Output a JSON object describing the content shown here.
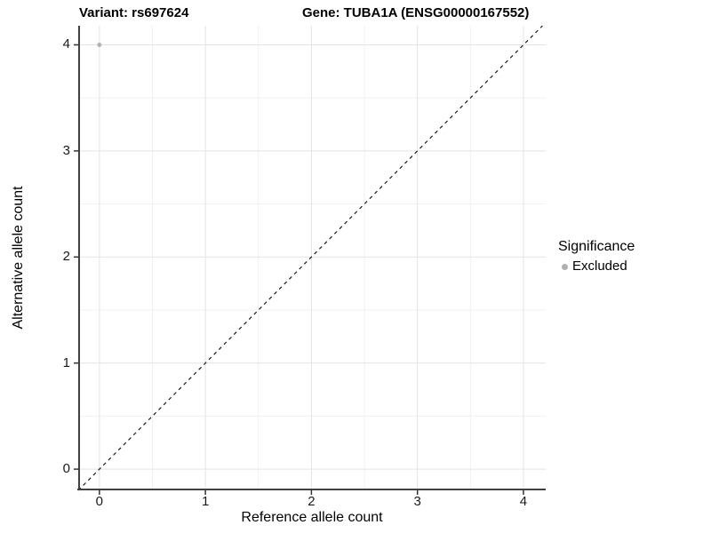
{
  "chart_data": {
    "type": "scatter",
    "title_left": "Variant: rs697624",
    "title_right": "Gene: TUBA1A (ENSG00000167552)",
    "xlabel": "Reference allele count",
    "ylabel": "Alternative allele count",
    "xlim": [
      -0.2,
      4.21
    ],
    "ylim": [
      -0.2,
      4.18
    ],
    "x_ticks": [
      0,
      1,
      2,
      3,
      4
    ],
    "y_ticks": [
      0,
      1,
      2,
      3,
      4
    ],
    "x_tick_labels": [
      "0",
      "1",
      "2",
      "3",
      "4"
    ],
    "y_tick_labels": [
      "0",
      "1",
      "2",
      "3",
      "4"
    ],
    "x_minor_ticks": [
      0.5,
      1.5,
      2.5,
      3.5
    ],
    "y_minor_ticks": [
      0.5,
      1.5,
      2.5,
      3.5
    ],
    "grid": true,
    "points": [
      {
        "x": 0,
        "y": 4,
        "series": "Excluded"
      }
    ],
    "reference_line": {
      "kind": "identity",
      "slope": 1,
      "intercept": 0,
      "style": "dashed"
    },
    "legend": {
      "title": "Significance",
      "position": "right",
      "items": [
        {
          "label": "Excluded",
          "color": "#b0b0b0"
        }
      ]
    },
    "colors": {
      "point": "#b3b3b3",
      "axis": "#404040",
      "grid_major": "#e3e3e3",
      "grid_minor": "#f1f1f1",
      "reference_line": "#1a1a1a",
      "tick_mark": "#333333"
    }
  }
}
